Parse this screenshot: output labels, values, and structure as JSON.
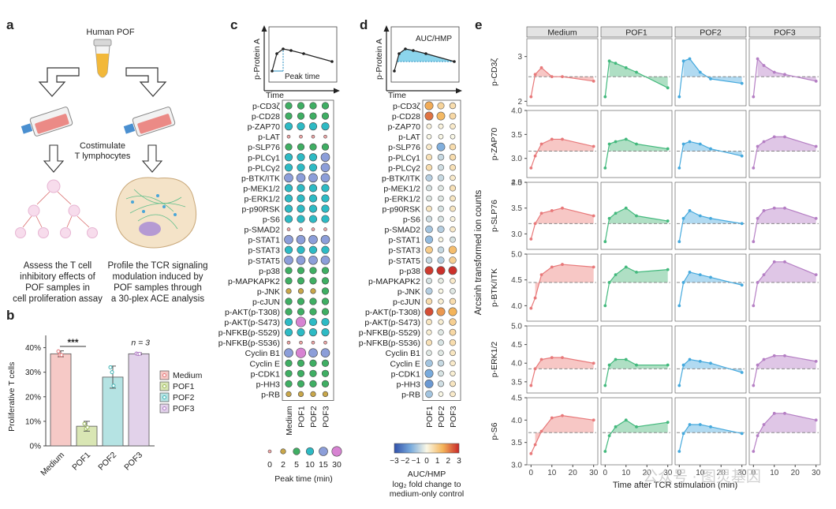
{
  "panel_labels": [
    "a",
    "b",
    "c",
    "d",
    "e"
  ],
  "panel_a": {
    "title": "Human POF",
    "middle_label": "Costimulate\nT lymphocytes",
    "left_caption": "Assess the T cell\ninhibitory effects of\nPOF samples in\ncell proliferation assay",
    "right_caption": "Profile the TCR signaling\nmodulation induced by\nPOF samples through\na 30-plex ACE analysis"
  },
  "chart_data": [
    {
      "id": "b",
      "type": "bar",
      "categories": [
        "Medium",
        "POF1",
        "POF2",
        "POF3"
      ],
      "values": [
        37.5,
        8,
        28,
        37.5
      ],
      "errors": [
        1.2,
        2,
        4.5,
        0.4
      ],
      "points": [
        [
          38.5,
          37,
          37
        ],
        [
          9,
          7,
          7.5
        ],
        [
          32,
          30,
          24.5
        ],
        [
          37.6,
          37.4,
          37.5
        ]
      ],
      "colors": [
        "#f6c9c6",
        "#d9e6b4",
        "#b5e3e3",
        "#e2d2ea"
      ],
      "point_colors": [
        "#e3777a",
        "#9dbb5b",
        "#3fb5b5",
        "#b07cc4"
      ],
      "ylabel": "Proliferative T cells",
      "yticks": [
        "0%",
        "10%",
        "20%",
        "30%",
        "40%"
      ],
      "ylim": [
        0,
        45
      ],
      "significance": "***",
      "n_label": "n = 3",
      "legend": [
        "Medium",
        "POF1",
        "POF2",
        "POF3"
      ]
    },
    {
      "id": "c",
      "type": "dot",
      "title_schematic": {
        "ylabel": "p-Protein A",
        "xlabel": "Time",
        "annotation": "Peak time"
      },
      "rows": [
        "p-CD3ζ",
        "p-CD28",
        "p-ZAP70",
        "p-LAT",
        "p-SLP76",
        "p-PLCγ1",
        "p-PLCγ2",
        "p-BTK/ITK",
        "p-MEK1/2",
        "p-ERK1/2",
        "p-p90RSK",
        "p-S6",
        "p-SMAD2",
        "p-STAT1",
        "p-STAT3",
        "p-STAT5",
        "p-p38",
        "p-MAPKAPK2",
        "p-JNK",
        "p-cJUN",
        "p-AKT(p-T308)",
        "p-AKT(p-S473)",
        "p-NFKB(p-S529)",
        "p-NFKB(p-S536)",
        "Cyclin B1",
        "Cyclin E",
        "p-CDK1",
        "p-HH3",
        "p-RB"
      ],
      "columns": [
        "Medium",
        "POF1",
        "POF2",
        "POF3"
      ],
      "peak_times": [
        [
          5,
          5,
          5,
          5
        ],
        [
          5,
          5,
          5,
          5
        ],
        [
          10,
          10,
          10,
          10
        ],
        [
          0,
          0,
          0,
          0
        ],
        [
          5,
          5,
          5,
          5
        ],
        [
          10,
          10,
          10,
          15
        ],
        [
          10,
          10,
          10,
          15
        ],
        [
          15,
          15,
          15,
          15
        ],
        [
          10,
          10,
          10,
          10
        ],
        [
          10,
          10,
          10,
          10
        ],
        [
          10,
          10,
          10,
          10
        ],
        [
          10,
          10,
          10,
          10
        ],
        [
          0,
          0,
          0,
          0
        ],
        [
          15,
          15,
          15,
          15
        ],
        [
          10,
          10,
          10,
          10
        ],
        [
          15,
          15,
          15,
          15
        ],
        [
          5,
          5,
          5,
          5
        ],
        [
          5,
          5,
          5,
          5
        ],
        [
          2,
          2,
          2,
          5
        ],
        [
          5,
          5,
          5,
          5
        ],
        [
          5,
          5,
          5,
          5
        ],
        [
          10,
          30,
          10,
          10
        ],
        [
          10,
          10,
          10,
          10
        ],
        [
          0,
          0,
          0,
          0
        ],
        [
          15,
          30,
          15,
          15
        ],
        [
          5,
          5,
          5,
          5
        ],
        [
          5,
          5,
          5,
          5
        ],
        [
          5,
          5,
          5,
          5
        ],
        [
          2,
          2,
          2,
          2
        ]
      ],
      "legend_values": [
        0,
        2,
        5,
        10,
        15,
        30
      ],
      "legend_title": "Peak time (min)"
    },
    {
      "id": "d",
      "type": "dot",
      "title_schematic": {
        "ylabel": "p-Protein A",
        "xlabel": "Time",
        "annotation": "AUC/HMP"
      },
      "columns": [
        "POF1",
        "POF2",
        "POF3"
      ],
      "log2fc": [
        [
          1.6,
          0.8,
          0.6
        ],
        [
          2.2,
          1.4,
          0.7
        ],
        [
          0.1,
          0.1,
          0.3
        ],
        [
          0,
          0,
          0
        ],
        [
          0.3,
          -1.4,
          0.6
        ],
        [
          0.5,
          -0.6,
          0.6
        ],
        [
          0.6,
          -0.5,
          0.5
        ],
        [
          -0.8,
          -0.6,
          0.3
        ],
        [
          -0.4,
          -0.3,
          0.5
        ],
        [
          -0.3,
          -0.3,
          0.4
        ],
        [
          0.4,
          -0.4,
          0.4
        ],
        [
          -0.5,
          -0.4,
          0.1
        ],
        [
          -1.0,
          -0.8,
          0.3
        ],
        [
          -1.2,
          0,
          -0.4
        ],
        [
          1.0,
          -0.6,
          1.3
        ],
        [
          -0.6,
          -0.8,
          0.9
        ],
        [
          2.8,
          2.9,
          2.9
        ],
        [
          -0.4,
          -0.2,
          0.3
        ],
        [
          -0.8,
          0,
          -0.3
        ],
        [
          0.6,
          0.2,
          0.6
        ],
        [
          2.6,
          1.8,
          1.5
        ],
        [
          0.4,
          0.2,
          0.9
        ],
        [
          0.2,
          -0.3,
          0.7
        ],
        [
          0.5,
          -0.4,
          0.6
        ],
        [
          -0.3,
          -0.3,
          0.4
        ],
        [
          -1.0,
          -0.6,
          0.3
        ],
        [
          -1.5,
          -0.4,
          0.2
        ],
        [
          -1.8,
          -0.5,
          0.4
        ],
        [
          -1.0,
          0,
          0.3
        ]
      ],
      "legend_ticks": [
        "−3",
        "−2",
        "−1",
        "0",
        "1",
        "2",
        "3"
      ],
      "legend_title": "AUC/HMP",
      "legend_subtitle": "log₂ fold change to",
      "legend_subtitle2": "medium-only control"
    },
    {
      "id": "e",
      "type": "area",
      "facets": [
        "Medium",
        "POF1",
        "POF2",
        "POF3"
      ],
      "rows": [
        "p-CD3ζ",
        "p-ZAP70",
        "p-SLP76",
        "p-BTK/ITK",
        "p-ERK1/2",
        "p-S6"
      ],
      "x": [
        0,
        2,
        5,
        10,
        15,
        30
      ],
      "xticks": [
        0,
        10,
        20,
        30
      ],
      "xlabel": "Time after TCR stimulation (min)",
      "ylabel": "Arcsinh transformed ion counts",
      "colors": [
        "#e8797a",
        "#43b97d",
        "#45a9dd",
        "#b57fc4"
      ],
      "fills": [
        "#f6c1bf",
        "#a6dcbe",
        "#a9d6f0",
        "#dcc0e3"
      ],
      "ylims": [
        [
          1.9,
          3.4
        ],
        [
          2.6,
          4.0
        ],
        [
          2.7,
          4.0
        ],
        [
          3.7,
          5.0
        ],
        [
          3.2,
          5.0
        ],
        [
          3.0,
          4.5
        ]
      ],
      "yticks": [
        [
          "2",
          "3"
        ],
        [
          "2.5",
          "3.0",
          "3.5",
          "4.0"
        ],
        [
          "3.0",
          "3.5",
          "4.0"
        ],
        [
          "4.0",
          "4.5",
          "5.0"
        ],
        [
          "3.5",
          "4.0",
          "4.5",
          "5.0"
        ],
        [
          "3.0",
          "3.5",
          "4.0",
          "4.5"
        ]
      ],
      "ytick_values": [
        [
          2,
          3
        ],
        [
          2.5,
          3.0,
          3.5,
          4.0
        ],
        [
          3.0,
          3.5,
          4.0
        ],
        [
          4.0,
          4.5,
          5.0
        ],
        [
          3.5,
          4.0,
          4.5,
          5.0
        ],
        [
          3.0,
          3.5,
          4.0,
          4.5
        ]
      ],
      "baselines": [
        2.55,
        3.15,
        3.2,
        4.45,
        3.85,
        3.72
      ],
      "series": [
        [
          [
            2.1,
            2.6,
            2.75,
            2.55,
            2.55,
            2.45
          ],
          [
            2.1,
            2.9,
            2.85,
            2.75,
            2.65,
            2.3
          ],
          [
            2.1,
            2.9,
            2.95,
            2.65,
            2.5,
            2.4
          ],
          [
            2.1,
            2.95,
            2.8,
            2.65,
            2.6,
            2.45
          ]
        ],
        [
          [
            2.8,
            3.05,
            3.3,
            3.4,
            3.4,
            3.25
          ],
          [
            2.8,
            3.3,
            3.35,
            3.4,
            3.3,
            3.2
          ],
          [
            2.8,
            3.3,
            3.35,
            3.3,
            3.2,
            3.05
          ],
          [
            2.8,
            3.25,
            3.35,
            3.45,
            3.45,
            3.25
          ]
        ],
        [
          [
            2.9,
            3.2,
            3.4,
            3.45,
            3.5,
            3.35
          ],
          [
            2.85,
            3.3,
            3.4,
            3.5,
            3.35,
            3.25
          ],
          [
            2.85,
            3.3,
            3.45,
            3.35,
            3.3,
            3.2
          ],
          [
            2.85,
            3.3,
            3.45,
            3.5,
            3.5,
            3.3
          ]
        ],
        [
          [
            3.95,
            4.15,
            4.6,
            4.75,
            4.8,
            4.75
          ],
          [
            4.0,
            4.45,
            4.6,
            4.75,
            4.65,
            4.7
          ],
          [
            4.0,
            4.45,
            4.65,
            4.6,
            4.55,
            4.4
          ],
          [
            4.0,
            4.45,
            4.6,
            4.85,
            4.85,
            4.6
          ]
        ],
        [
          [
            3.4,
            3.85,
            4.1,
            4.15,
            4.15,
            4.0
          ],
          [
            3.4,
            3.95,
            4.1,
            4.1,
            3.95,
            3.95
          ],
          [
            3.4,
            3.95,
            4.1,
            4.05,
            4.0,
            3.75
          ],
          [
            3.4,
            3.95,
            4.1,
            4.2,
            4.2,
            4.05
          ]
        ],
        [
          [
            3.25,
            3.45,
            3.75,
            4.05,
            4.1,
            4.0
          ],
          [
            3.3,
            3.65,
            3.85,
            4.0,
            3.85,
            3.95
          ],
          [
            3.3,
            3.7,
            3.9,
            3.9,
            3.85,
            3.7
          ],
          [
            3.3,
            3.65,
            3.9,
            4.15,
            4.15,
            4.0
          ]
        ]
      ]
    }
  ],
  "watermark": "公众号 · 图灵基因"
}
